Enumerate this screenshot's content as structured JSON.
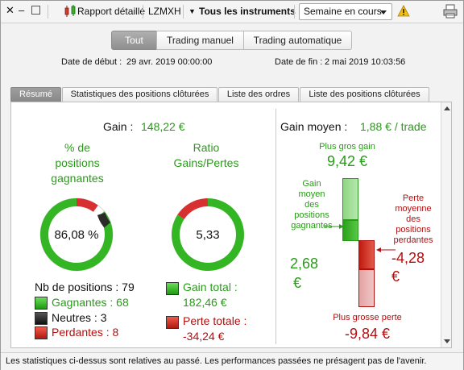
{
  "toolbar": {
    "report_label": "Rapport détaillé",
    "symbol": "LZMXH",
    "instruments_label": "Tous les instruments",
    "period_value": "Semaine en cours"
  },
  "segments": [
    "Tout",
    "Trading manuel",
    "Trading automatique"
  ],
  "dates": {
    "start_label": "Date de début :",
    "start_value": "29 avr. 2019 00:00:00",
    "end_label": "Date de fin :",
    "end_value": "2 mai 2019 10:03:56"
  },
  "tabs": [
    "Résumé",
    "Statistiques des positions clôturées",
    "Liste des ordres",
    "Liste des positions clôturées"
  ],
  "summary": {
    "gain_label": "Gain :",
    "gain_value": "148,22 €",
    "win_pct_title_1": "% de",
    "win_pct_title_2": "positions",
    "win_pct_title_3": "gagnantes",
    "win_pct_value": "86,08 %",
    "win_fraction": 0.8608,
    "neutral_fraction": 0.038,
    "ratio_title_1": "Ratio",
    "ratio_title_2": "Gains/Pertes",
    "ratio_value": "5,33",
    "ratio_gain_fraction": 0.842,
    "positions_count_label": "Nb de positions : 79",
    "winners_label": "Gagnantes : 68",
    "neutral_label": "Neutres : 3",
    "losers_label": "Perdantes : 8",
    "total_gain_label_1": "Gain total :",
    "total_gain_value": "182,46 €",
    "total_loss_label_1": "Perte totale :",
    "total_loss_value": "-34,24 €"
  },
  "avg": {
    "title_label": "Gain moyen :",
    "title_value": "1,88 € / trade",
    "max_gain_label": "Plus gros gain",
    "max_gain_value": "9,42 €",
    "avg_win_label": [
      "Gain",
      "moyen",
      "des",
      "positions",
      "gagnantes"
    ],
    "avg_win_value_1": "2,68",
    "avg_win_value_2": "€",
    "avg_loss_label": [
      "Perte",
      "moyenne",
      "des",
      "positions",
      "perdantes"
    ],
    "avg_loss_value_1": "-4,28",
    "avg_loss_value_2": "€",
    "max_loss_label": "Plus grosse perte",
    "max_loss_value": "-9,84 €"
  },
  "footer": "Les statistiques ci-dessus sont relatives au passé. Les performances passées ne présagent pas de l'avenir.",
  "colors": {
    "green": "#2a9a1a",
    "red": "#b01010",
    "win_ring": "#34b523",
    "loss_ring": "#d83030",
    "neutral_ring": "#2b2b2b"
  }
}
